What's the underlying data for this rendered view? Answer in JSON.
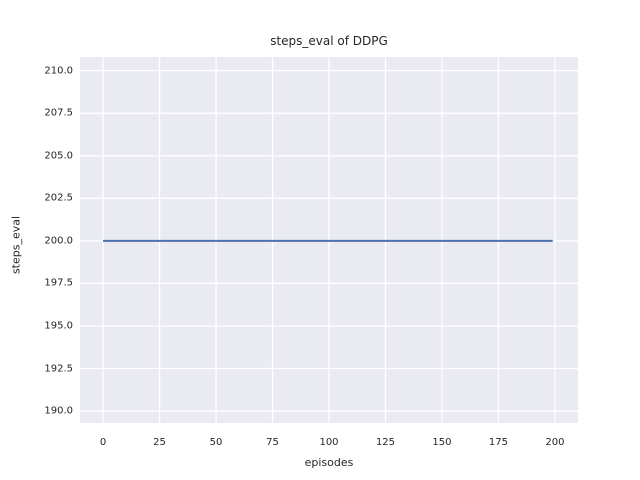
{
  "figure": {
    "background_color": "#ffffff",
    "plot_background_color": "#eaeaf2",
    "grid_color": "#ffffff",
    "text_color": "#262626"
  },
  "chart_data": {
    "type": "line",
    "title": "steps_eval of DDPG",
    "xlabel": "episodes",
    "ylabel": "steps_eval",
    "xlim": [
      -10.2,
      210.2
    ],
    "ylim": [
      189.3,
      210.8
    ],
    "xticks": [
      0,
      25,
      50,
      75,
      100,
      125,
      150,
      175,
      200
    ],
    "xtick_labels": [
      "0",
      "25",
      "50",
      "75",
      "100",
      "125",
      "150",
      "175",
      "200"
    ],
    "yticks": [
      190.0,
      192.5,
      195.0,
      197.5,
      200.0,
      202.5,
      205.0,
      207.5,
      210.0
    ],
    "ytick_labels": [
      "190.0",
      "192.5",
      "195.0",
      "197.5",
      "200.0",
      "202.5",
      "205.0",
      "207.5",
      "210.0"
    ],
    "grid": true,
    "legend_position": "none",
    "series": [
      {
        "name": "steps_eval",
        "color": "#4c72b0",
        "linewidth": 2,
        "x": [
          0,
          199
        ],
        "y": [
          200,
          200
        ]
      }
    ]
  }
}
